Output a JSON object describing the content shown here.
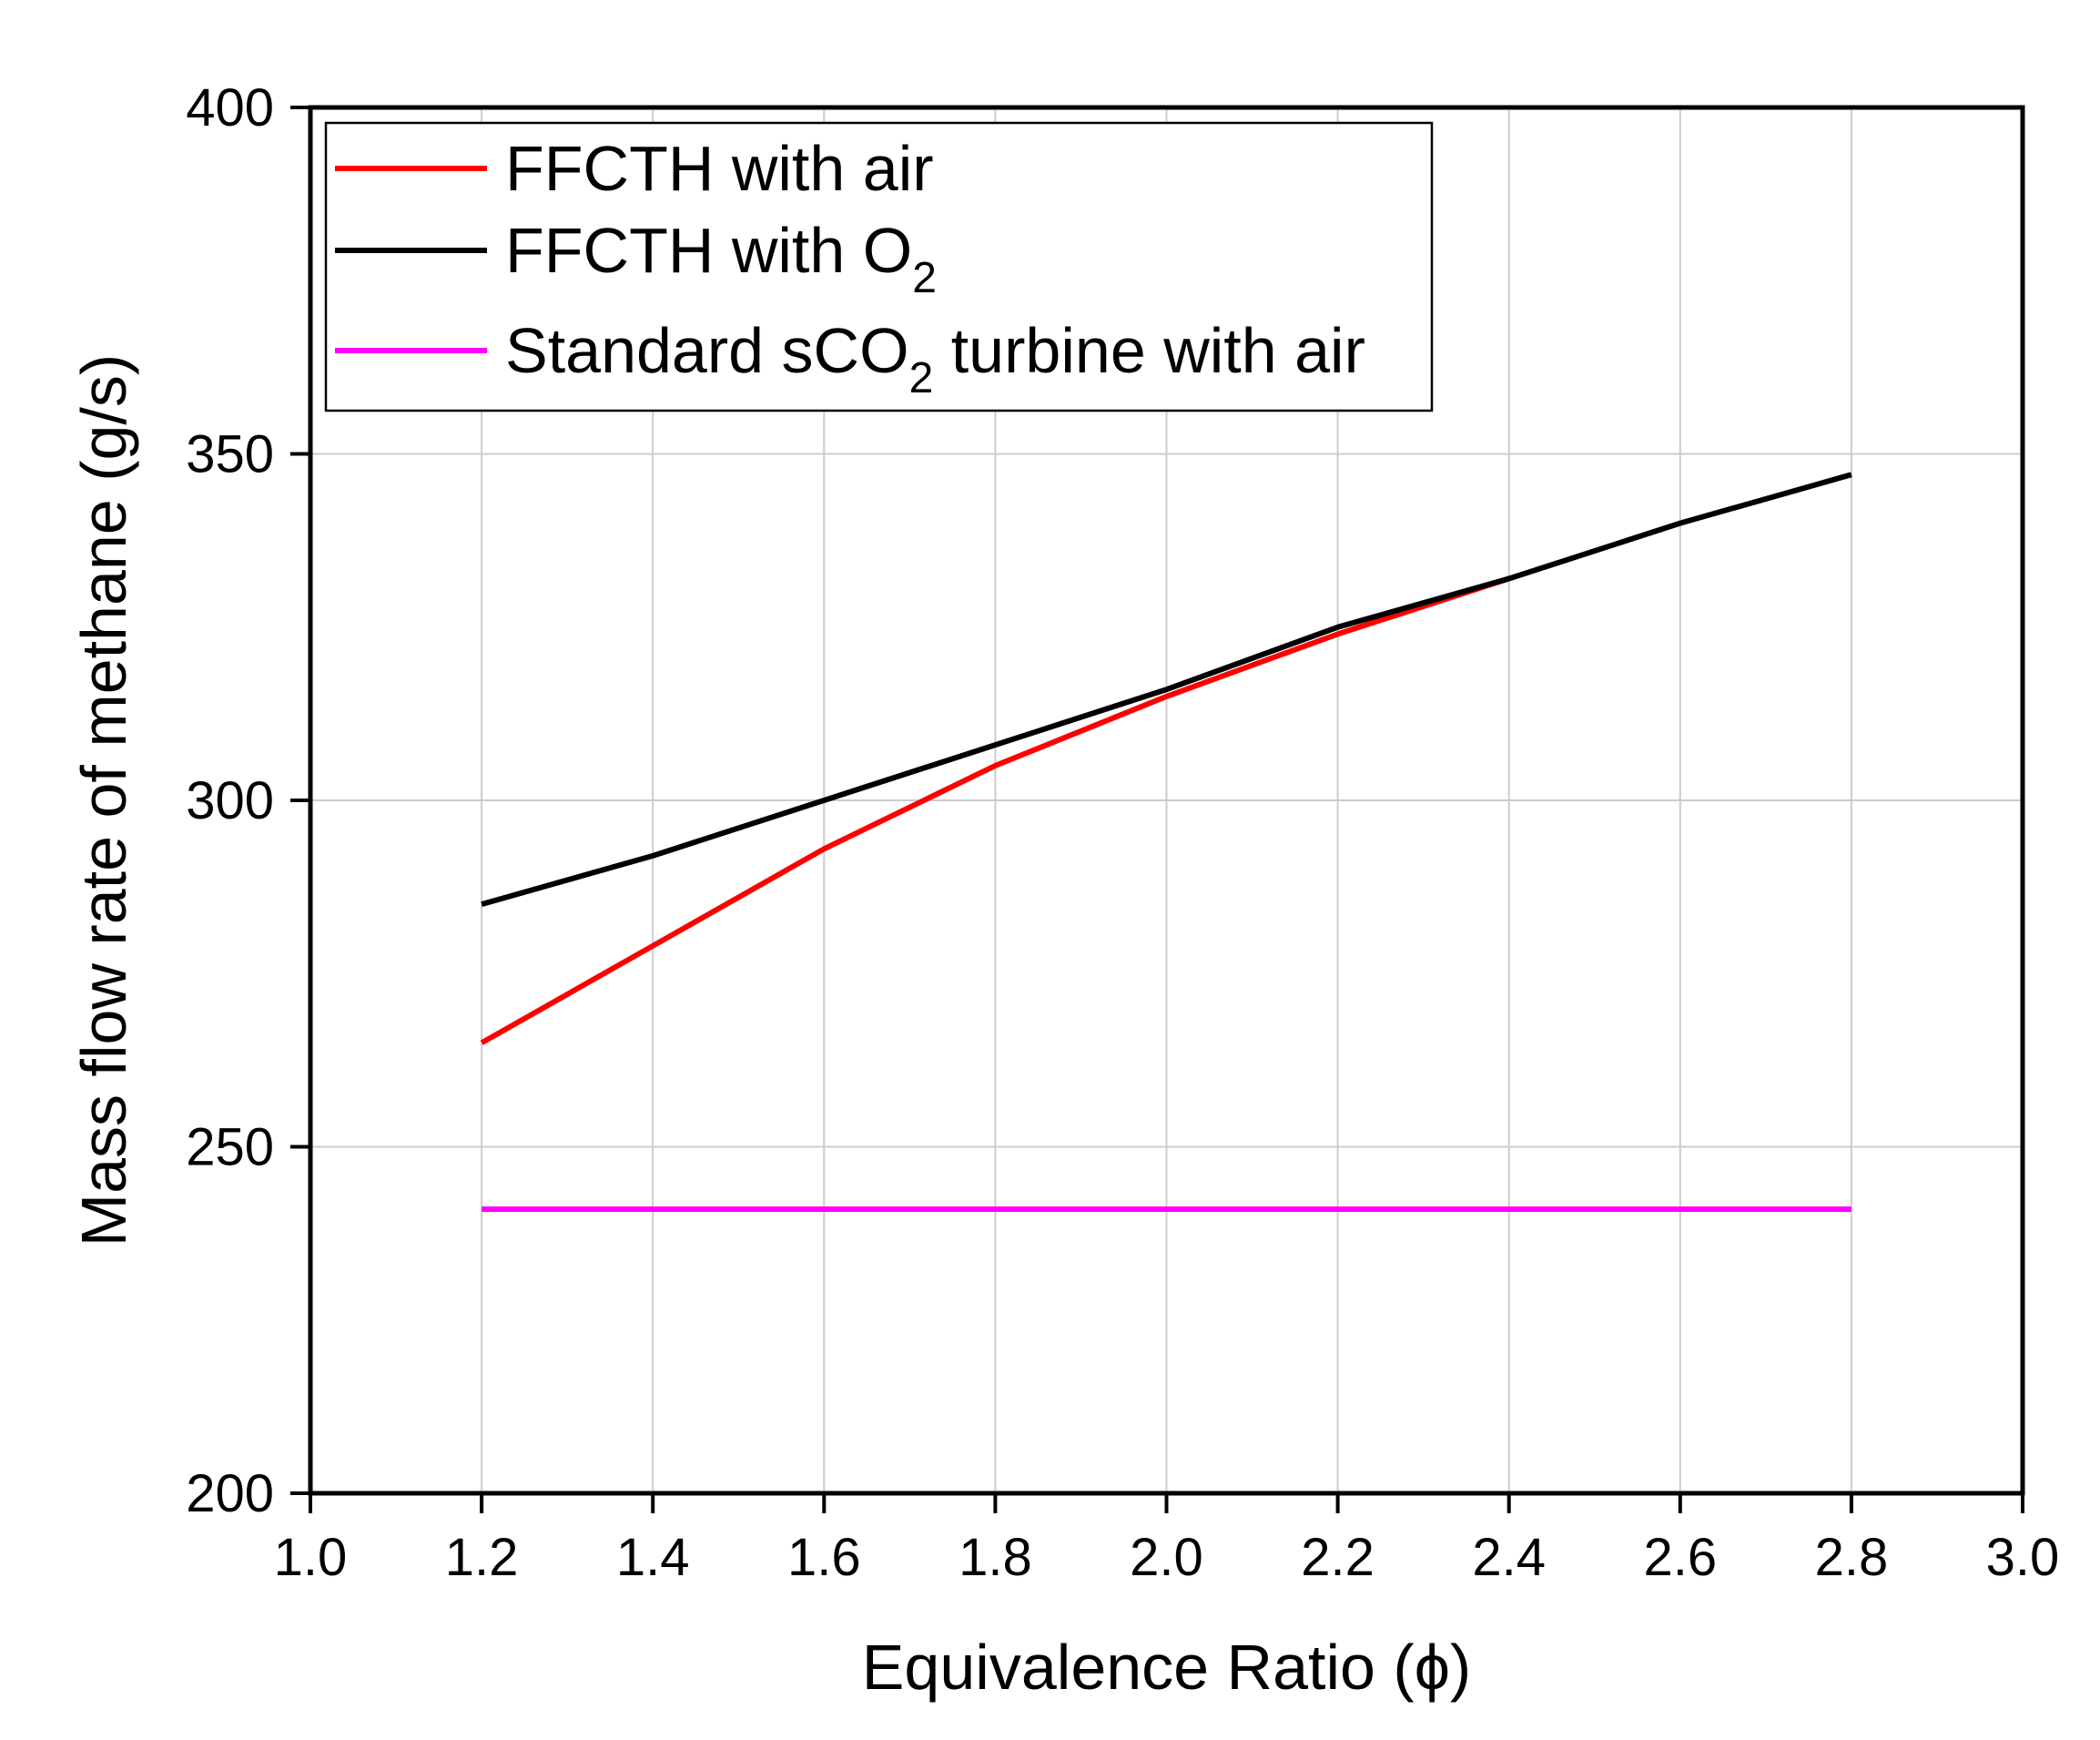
{
  "chart_data": {
    "type": "line",
    "xlabel": "Equivalence Ratio (ϕ)",
    "ylabel": "Mass flow rate of methane (g/s)",
    "xlim": [
      1.0,
      3.0
    ],
    "ylim": [
      200,
      400
    ],
    "xticks": [
      "1.0",
      "1.2",
      "1.4",
      "1.6",
      "1.8",
      "2.0",
      "2.2",
      "2.4",
      "2.6",
      "2.8",
      "3.0"
    ],
    "yticks": [
      "200",
      "250",
      "300",
      "350",
      "400"
    ],
    "grid": true,
    "legend_position": "top-left",
    "series": [
      {
        "name": "FFCTH with air",
        "legend": {
          "text": "FFCTH with air",
          "sub": "",
          "tail": ""
        },
        "color": "#ff0000",
        "x": [
          1.2,
          1.4,
          1.6,
          1.8,
          2.0,
          2.2,
          2.4
        ],
        "y": [
          265,
          279,
          293,
          305,
          315,
          324,
          332
        ]
      },
      {
        "name": "FFCTH with O2",
        "legend": {
          "text": "FFCTH with O",
          "sub": "2",
          "tail": ""
        },
        "color": "#000000",
        "x": [
          1.2,
          1.4,
          1.6,
          1.8,
          2.0,
          2.2,
          2.4,
          2.6,
          2.8
        ],
        "y": [
          285,
          292,
          300,
          308,
          316,
          325,
          332,
          340,
          347
        ]
      },
      {
        "name": "Standard sCO2 turbine with air",
        "legend": {
          "text": "Standard sCO",
          "sub": "2",
          "tail": " turbine with air"
        },
        "color": "#ff00ff",
        "x": [
          1.2,
          2.8
        ],
        "y": [
          241,
          241
        ]
      }
    ]
  }
}
